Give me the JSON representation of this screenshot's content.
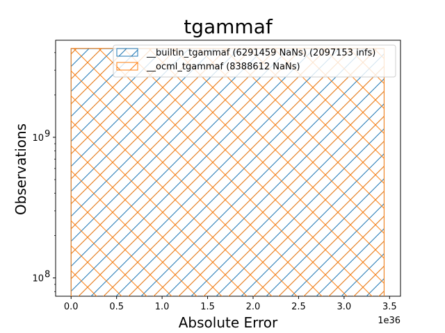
{
  "chart_data": {
    "type": "bar",
    "title": "tgammaf",
    "xlabel": "Absolute Error",
    "ylabel": "Observations",
    "x_offset_label": "1e36",
    "xlim": [
      -0.17,
      3.62
    ],
    "ylog": true,
    "ylim_log10": [
      7.87,
      9.69
    ],
    "x_ticks": [
      {
        "value": 0.0,
        "label": "0.0"
      },
      {
        "value": 0.5,
        "label": "0.5"
      },
      {
        "value": 1.0,
        "label": "1.0"
      },
      {
        "value": 1.5,
        "label": "1.5"
      },
      {
        "value": 2.0,
        "label": "2.0"
      },
      {
        "value": 2.5,
        "label": "2.5"
      },
      {
        "value": 3.0,
        "label": "3.0"
      },
      {
        "value": 3.5,
        "label": "3.5"
      }
    ],
    "y_ticks": [
      {
        "value": 100000000,
        "base": "10",
        "exp": "8"
      },
      {
        "value": 1000000000,
        "base": "10",
        "exp": "9"
      }
    ],
    "legend_position": "upper-right",
    "series": [
      {
        "name": "__builtin_tgammaf (6291459 NaNs) (2097153 infs)",
        "color": "#1f77b4",
        "hatch": "/",
        "bins": [
          {
            "x0": 0.0,
            "x1": 3.44,
            "count": 4265000000
          }
        ]
      },
      {
        "name": "__ocml_tgammaf (8388612 NaNs)",
        "color": "#ff7f0e",
        "hatch": "x",
        "bins": [
          {
            "x0": 0.0,
            "x1": 3.44,
            "count": 4286000000
          }
        ]
      }
    ]
  }
}
